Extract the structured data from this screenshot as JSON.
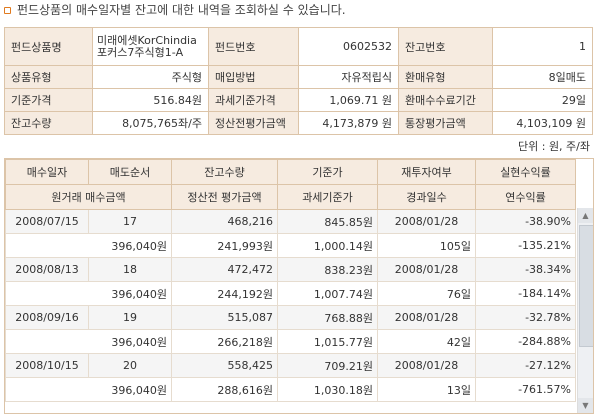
{
  "title": "펀드상품의 매수일자별 잔고에 대한 내역을 조회하실 수 있습니다.",
  "info": [
    [
      {
        "label": "펀드상품명",
        "value": "미래에셋KorChindia 포커스7주식형1-A",
        "wrap": true
      },
      {
        "label": "펀드번호",
        "value": "0602532"
      },
      {
        "label": "잔고번호",
        "value": "1"
      }
    ],
    [
      {
        "label": "상품유형",
        "value": "주식형"
      },
      {
        "label": "매입방법",
        "value": "자유적립식"
      },
      {
        "label": "환매유형",
        "value": "8일매도"
      }
    ],
    [
      {
        "label": "기준가격",
        "value": "516.84원"
      },
      {
        "label": "과세기준가격",
        "value": "1,069.71 원"
      },
      {
        "label": "환매수수료기간",
        "value": "29일"
      }
    ],
    [
      {
        "label": "잔고수량",
        "value": "8,075,765좌/주"
      },
      {
        "label": "정산전평가금액",
        "value": "4,173,879 원"
      },
      {
        "label": "통장평가금액",
        "value": "4,103,109 원"
      }
    ]
  ],
  "unit": "단위 : 원, 주/좌",
  "headers": {
    "row1": [
      "매수일자",
      "매도순서",
      "잔고수량",
      "기준가",
      "재투자여부",
      "실현수익률"
    ],
    "row2": [
      "원거래 매수금액",
      "정산전 평가금액",
      "과세기준가",
      "경과일수",
      "연수익률"
    ]
  },
  "rows": [
    {
      "r1": [
        "2008/07/15",
        "17",
        "468,216",
        "845.85원",
        "2008/01/28",
        "-38.90%"
      ],
      "r2": [
        "396,040원",
        "241,993원",
        "1,000.14원",
        "105일",
        "-135.21%"
      ]
    },
    {
      "r1": [
        "2008/08/13",
        "18",
        "472,472",
        "838.23원",
        "2008/01/28",
        "-38.34%"
      ],
      "r2": [
        "396,040원",
        "244,192원",
        "1,007.74원",
        "76일",
        "-184.14%"
      ]
    },
    {
      "r1": [
        "2008/09/16",
        "19",
        "515,087",
        "768.88원",
        "2008/01/28",
        "-32.78%"
      ],
      "r2": [
        "396,040원",
        "266,218원",
        "1,015.77원",
        "42일",
        "-284.88%"
      ]
    },
    {
      "r1": [
        "2008/10/15",
        "20",
        "558,425",
        "709.21원",
        "2008/01/28",
        "-27.12%"
      ],
      "r2": [
        "396,040원",
        "288,616원",
        "1,030.18원",
        "13일",
        "-761.57%"
      ]
    }
  ],
  "scroll": {
    "up": "▲",
    "down": "▼"
  }
}
